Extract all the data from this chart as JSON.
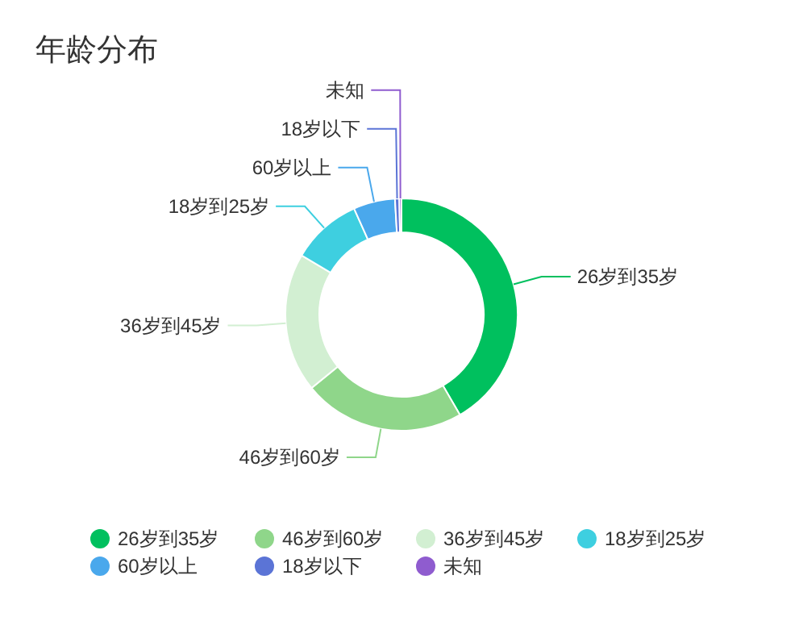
{
  "chart_data": {
    "type": "donut",
    "title": "年龄分布",
    "categories": [
      "26岁到35岁",
      "46岁到60岁",
      "36岁到45岁",
      "18岁到25岁",
      "60岁以上",
      "18岁以下",
      "未知"
    ],
    "values": [
      41.6,
      22.5,
      19.4,
      9.8,
      5.8,
      0.6,
      0.3
    ],
    "colors": [
      "#00c05e",
      "#8fd68a",
      "#d2efd2",
      "#3ecfe0",
      "#4aa8ec",
      "#5b74d6",
      "#8f5ccf"
    ],
    "legend": "bottom"
  }
}
